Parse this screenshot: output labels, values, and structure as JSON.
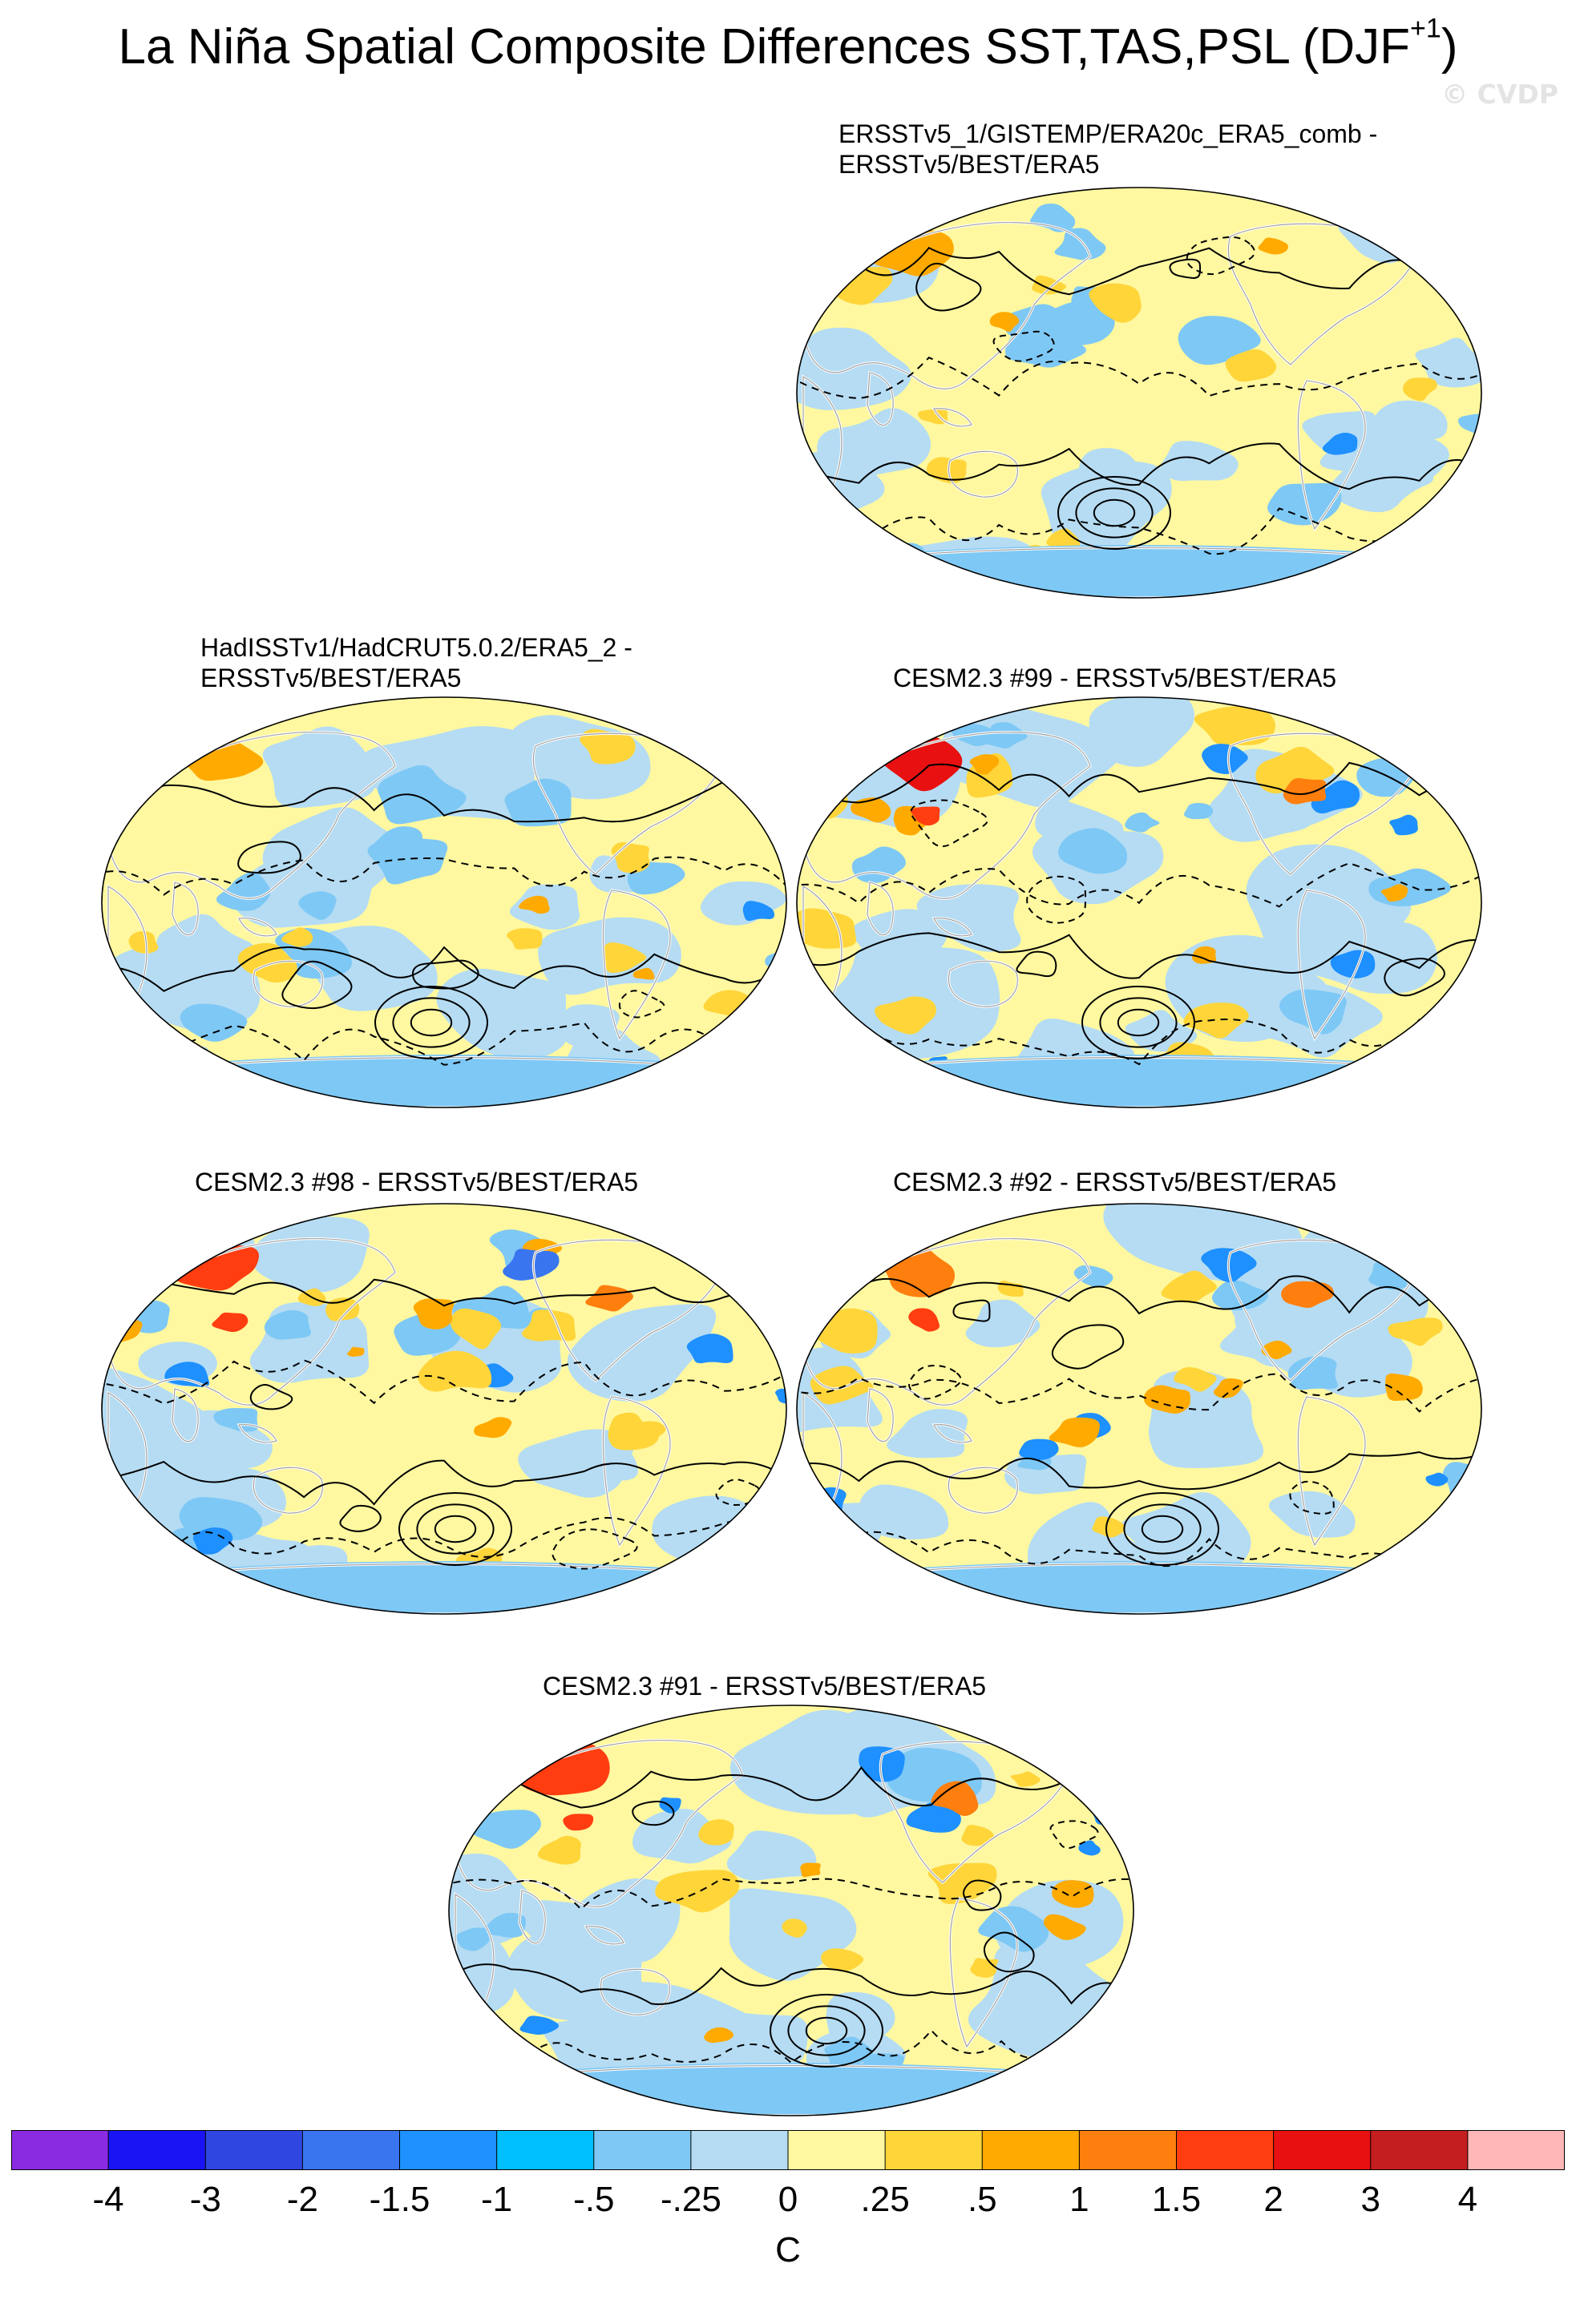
{
  "title_main": "La Niña Spatial Composite Differences SST,TAS,PSL (DJF",
  "title_sup": "+1",
  "title_close": ")",
  "watermark": "© CVDP",
  "panels": [
    {
      "lines": [
        "ERSSTv5_1/GISTEMP/ERA20c_ERA5_comb -",
        "ERSSTv5/BEST/ERA5"
      ],
      "variant": 0
    },
    {
      "lines": [
        "HadISSTv1/HadCRUT5.0.2/ERA5_2 -",
        "ERSSTv5/BEST/ERA5"
      ],
      "variant": 1
    },
    {
      "lines": [
        "CESM2.3 #99 - ERSSTv5/BEST/ERA5"
      ],
      "variant": 2
    },
    {
      "lines": [
        "CESM2.3 #98 - ERSSTv5/BEST/ERA5"
      ],
      "variant": 3
    },
    {
      "lines": [
        "CESM2.3 #92 - ERSSTv5/BEST/ERA5"
      ],
      "variant": 4
    },
    {
      "lines": [
        "CESM2.3 #91 - ERSSTv5/BEST/ERA5"
      ],
      "variant": 5
    }
  ],
  "colorbar": {
    "colors": [
      "#8a2be2",
      "#1a14f5",
      "#2f47e0",
      "#3a75f0",
      "#1e90ff",
      "#00bfff",
      "#7ec8f5",
      "#b5dcf3",
      "#fff8a0",
      "#ffd53a",
      "#ffaa00",
      "#ff7f0e",
      "#ff3d10",
      "#e81010",
      "#c41e1e",
      "#ffb6b6"
    ],
    "labels": [
      "-4",
      "-3",
      "-2",
      "-1.5",
      "-1",
      "-.5",
      "-.25",
      "0",
      ".25",
      ".5",
      "1",
      "1.5",
      "2",
      "3",
      "4"
    ],
    "units": "C"
  }
}
